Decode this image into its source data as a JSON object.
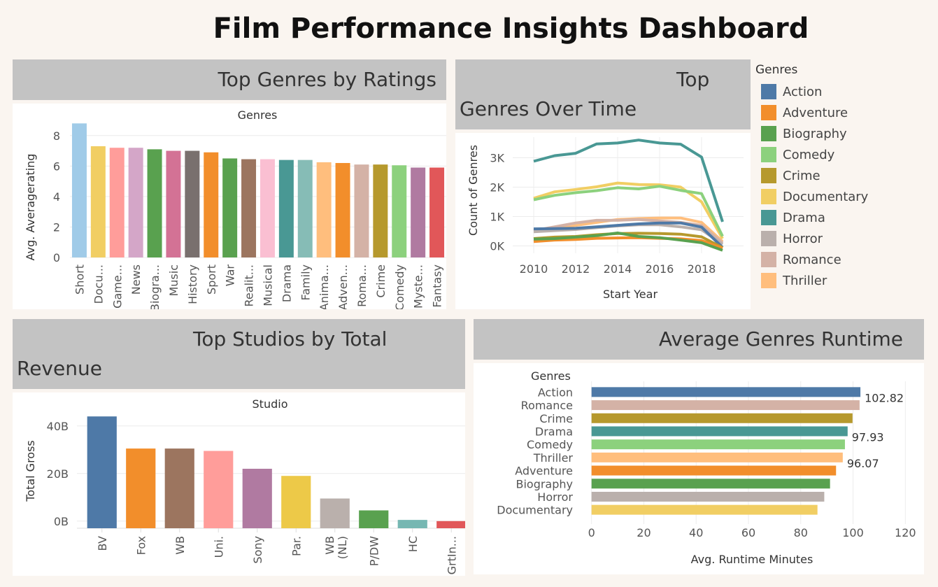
{
  "dashboard_title": "Film Performance Insights Dashboard",
  "panels": {
    "ratings_title": "Top Genres by Ratings",
    "timeline_title_1": "Top",
    "timeline_title_2": "Genres Over Time",
    "studios_title_1": "Top Studios by Total",
    "studios_title_2": "Revenue",
    "runtime_title": "Average Genres Runtime"
  },
  "colors": {
    "Short": "#a0cbe8",
    "Docu...": "#f1ce63",
    "Game...": "#ff9d9a",
    "News": "#d4a6c8",
    "Biogra...": "#59a14f",
    "Music": "#d37295",
    "History": "#79706e",
    "Sport": "#f28e2b",
    "War": "#59a14f",
    "Realit...": "#9c755f",
    "Musical": "#fabfd2",
    "Drama": "#499894",
    "Family": "#86bcb6",
    "Anima...": "#ffbe7d",
    "Adven...": "#f28e2b",
    "Roma...": "#d4b2a6",
    "Crime": "#b6992d",
    "Comedy": "#8cd17d",
    "Myste...": "#b07aa1",
    "Fantasy": "#e15759"
  },
  "legend": {
    "title": "Genres",
    "items": [
      {
        "label": "Action",
        "color": "#4e79a7"
      },
      {
        "label": "Adventure",
        "color": "#f28e2b"
      },
      {
        "label": "Biography",
        "color": "#59a14f"
      },
      {
        "label": "Comedy",
        "color": "#8cd17d"
      },
      {
        "label": "Crime",
        "color": "#b6992d"
      },
      {
        "label": "Documentary",
        "color": "#f1ce63"
      },
      {
        "label": "Drama",
        "color": "#499894"
      },
      {
        "label": "Horror",
        "color": "#bab0ac"
      },
      {
        "label": "Romance",
        "color": "#d4b2a6"
      },
      {
        "label": "Thriller",
        "color": "#ffbe7d"
      }
    ]
  },
  "chart_data": [
    {
      "type": "bar",
      "title": "Genres",
      "ylabel": "Avg. Averagerating",
      "ylim": [
        0,
        9
      ],
      "yticks": [
        0,
        2,
        4,
        6,
        8
      ],
      "categories": [
        "Short",
        "Docu...",
        "Game...",
        "News",
        "Biogra...",
        "Music",
        "History",
        "Sport",
        "War",
        "Realit...",
        "Musical",
        "Drama",
        "Family",
        "Anima...",
        "Adven...",
        "Roma...",
        "Crime",
        "Comedy",
        "Myste...",
        "Fantasy"
      ],
      "values": [
        8.8,
        7.3,
        7.2,
        7.2,
        7.1,
        7.0,
        7.0,
        6.9,
        6.5,
        6.45,
        6.45,
        6.4,
        6.4,
        6.25,
        6.2,
        6.1,
        6.1,
        6.05,
        5.9,
        5.9
      ]
    },
    {
      "type": "line",
      "xlabel": "Start Year",
      "ylabel": "Count of Genres",
      "xticks": [
        2010,
        2012,
        2014,
        2016,
        2018
      ],
      "yticks": [
        {
          "v": 0,
          "label": "0K"
        },
        {
          "v": 1000,
          "label": "1K"
        },
        {
          "v": 2000,
          "label": "2K"
        },
        {
          "v": 3000,
          "label": "3K"
        }
      ],
      "xlim": [
        2009,
        2020
      ],
      "ylim": [
        -250,
        3700
      ],
      "x": [
        2010,
        2011,
        2012,
        2013,
        2014,
        2015,
        2016,
        2017,
        2018,
        2019
      ],
      "series": [
        {
          "name": "Drama",
          "color": "#499894",
          "values": [
            2880,
            3070,
            3150,
            3470,
            3500,
            3600,
            3500,
            3460,
            3020,
            820
          ]
        },
        {
          "name": "Documentary",
          "color": "#f1ce63",
          "values": [
            1620,
            1840,
            1920,
            2010,
            2140,
            2090,
            2080,
            2000,
            1500,
            250
          ]
        },
        {
          "name": "Comedy",
          "color": "#8cd17d",
          "values": [
            1570,
            1720,
            1810,
            1880,
            1980,
            1940,
            2030,
            1890,
            1780,
            330
          ]
        },
        {
          "name": "Thriller",
          "color": "#ffbe7d",
          "values": [
            560,
            600,
            700,
            800,
            900,
            930,
            950,
            950,
            800,
            150
          ]
        },
        {
          "name": "Romance",
          "color": "#d4b2a6",
          "values": [
            520,
            650,
            780,
            870,
            870,
            900,
            850,
            800,
            700,
            100
          ]
        },
        {
          "name": "Horror",
          "color": "#bab0ac",
          "values": [
            480,
            520,
            560,
            620,
            680,
            720,
            720,
            650,
            550,
            50
          ]
        },
        {
          "name": "Action",
          "color": "#4e79a7",
          "values": [
            580,
            590,
            600,
            650,
            700,
            750,
            780,
            780,
            640,
            -50
          ]
        },
        {
          "name": "Crime",
          "color": "#b6992d",
          "values": [
            250,
            300,
            320,
            380,
            420,
            430,
            420,
            400,
            310,
            -60
          ]
        },
        {
          "name": "Adventure",
          "color": "#f28e2b",
          "values": [
            150,
            200,
            220,
            260,
            270,
            280,
            260,
            240,
            180,
            -80
          ]
        },
        {
          "name": "Biography",
          "color": "#59a14f",
          "values": [
            230,
            250,
            300,
            350,
            440,
            320,
            280,
            200,
            110,
            -150
          ]
        }
      ]
    },
    {
      "type": "bar",
      "title": "Studio",
      "ylabel": "Total Gross",
      "ylim": [
        -3000000000,
        47000000000
      ],
      "yticks": [
        {
          "v": 0,
          "label": "0B"
        },
        {
          "v": 20000000000,
          "label": "20B"
        },
        {
          "v": 40000000000,
          "label": "40B"
        }
      ],
      "categories": [
        "BV",
        "Fox",
        "WB",
        "Uni.",
        "Sony",
        "Par.",
        "WB (NL)",
        "P/DW",
        "HC",
        "GrtIn..."
      ],
      "values": [
        44000000000,
        30500000000,
        30500000000,
        29500000000,
        22000000000,
        19000000000,
        9500000000,
        4500000000,
        500000000,
        0
      ],
      "colors": [
        "#4e79a7",
        "#f28e2b",
        "#9c755f",
        "#ff9d9a",
        "#b07aa1",
        "#edc948",
        "#bab0ac",
        "#59a14f",
        "#76b7b2",
        "#e15759"
      ]
    },
    {
      "type": "bar",
      "orientation": "horizontal",
      "ylabel": "Genres",
      "xlabel": "Avg. Runtime Minutes",
      "xlim": [
        -5,
        125
      ],
      "xticks": [
        0,
        20,
        40,
        60,
        80,
        100,
        120
      ],
      "categories": [
        "Action",
        "Romance",
        "Crime",
        "Drama",
        "Comedy",
        "Thriller",
        "Adventure",
        "Biography",
        "Horror",
        "Documentary"
      ],
      "values": [
        102.82,
        102.5,
        99.8,
        97.93,
        96.9,
        96.07,
        93.5,
        91.2,
        89.0,
        86.4
      ],
      "labels": [
        "102.82",
        "",
        "",
        "97.93",
        "",
        "96.07",
        "",
        "",
        "",
        ""
      ],
      "colors": [
        "#4e79a7",
        "#d4b2a6",
        "#b6992d",
        "#499894",
        "#8cd17d",
        "#ffbe7d",
        "#f28e2b",
        "#59a14f",
        "#bab0ac",
        "#f1ce63"
      ]
    }
  ]
}
